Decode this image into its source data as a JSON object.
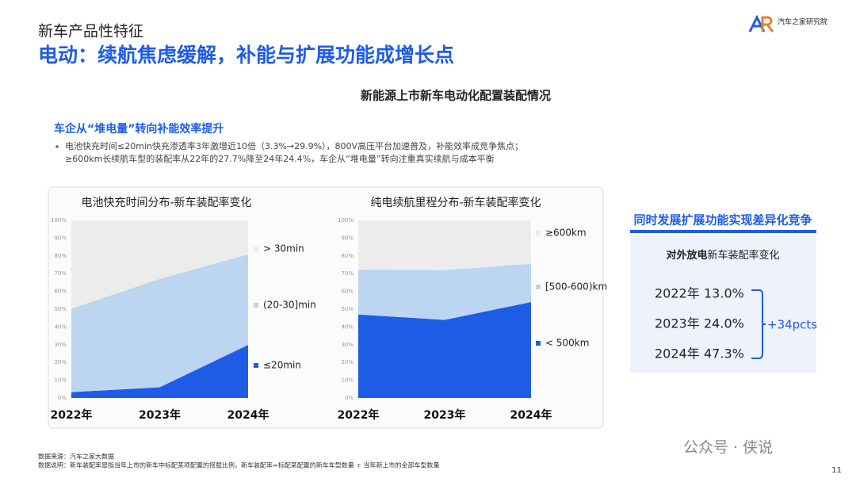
{
  "header": {
    "section": "新车产品性特征",
    "title": "电动：续航焦虑缓解，补能与扩展功能成增长点",
    "logo": "汽车之家研究院"
  },
  "subheading": "新能源上市新车电动化配置装配情况",
  "highlight": {
    "title": "车企从“堆电量”转向补能效率提升",
    "bullets": [
      "电池快充时间≤20min快充渗透率3年激增近10倍（3.3%→29.9%），800V高压平台加速普及，补能效率成竞争焦点；",
      "≥600km长续航车型的装配率从22年的27.7%降至24年24.4%，车企从“堆电量”转向注重真实续航与成本平衡"
    ]
  },
  "chart_data": [
    {
      "type": "area",
      "stacked": true,
      "title": "电池快充时间分布-新车装配率变化",
      "categories": [
        "2022年",
        "2023年",
        "2024年"
      ],
      "series": [
        {
          "name": "≤20min",
          "color": "#1f5ce6",
          "values": [
            3.3,
            6,
            29.9
          ]
        },
        {
          "name": "(20-30]min",
          "color": "#bcd5f0",
          "values": [
            47,
            61,
            51
          ]
        },
        {
          "name": "> 30min",
          "color": "#ececec",
          "values": [
            49.7,
            33,
            19.1
          ]
        }
      ],
      "ylim": [
        0,
        100
      ],
      "yticks": [
        {
          "value": 0,
          "label": "0%"
        },
        {
          "value": 10,
          "label": "10%"
        },
        {
          "value": 20,
          "label": "20%"
        },
        {
          "value": 30,
          "label": "30%"
        },
        {
          "value": 40,
          "label": "40%"
        },
        {
          "value": 50,
          "label": "50%"
        },
        {
          "value": 60,
          "label": "60%"
        },
        {
          "value": 70,
          "label": "70%"
        },
        {
          "value": 80,
          "label": "80%"
        },
        {
          "value": 90,
          "label": "90%"
        },
        {
          "value": 100,
          "label": "100%"
        }
      ]
    },
    {
      "type": "area",
      "stacked": true,
      "title": "纯电续航里程分布-新车装配率变化",
      "categories": [
        "2022年",
        "2023年",
        "2024年"
      ],
      "series": [
        {
          "name": "< 500km",
          "color": "#1f5ce6",
          "values": [
            47,
            44,
            54
          ]
        },
        {
          "name": "[500-600)km",
          "color": "#bcd5f0",
          "values": [
            25.3,
            28,
            21.6
          ]
        },
        {
          "name": "≥600km",
          "color": "#ececec",
          "values": [
            27.7,
            28,
            24.4
          ]
        }
      ],
      "ylim": [
        0,
        100
      ],
      "yticks": [
        {
          "value": 0,
          "label": "0%"
        },
        {
          "value": 10,
          "label": "10%"
        },
        {
          "value": 20,
          "label": "20%"
        },
        {
          "value": 30,
          "label": "30%"
        },
        {
          "value": 40,
          "label": "40%"
        },
        {
          "value": 50,
          "label": "50%"
        },
        {
          "value": 60,
          "label": "60%"
        },
        {
          "value": 70,
          "label": "70%"
        },
        {
          "value": 80,
          "label": "80%"
        },
        {
          "value": 90,
          "label": "90%"
        },
        {
          "value": 100,
          "label": "100%"
        }
      ]
    }
  ],
  "side_panel": {
    "title": "同时发展扩展功能实现差异化竞争",
    "subtitle_bold": "对外放电",
    "subtitle": "新车装配率变化",
    "rows": [
      {
        "year": "2022年",
        "value": "13.0%"
      },
      {
        "year": "2023年",
        "value": "24.0%"
      },
      {
        "year": "2024年",
        "value": "47.3%"
      }
    ],
    "change": "+34pcts"
  },
  "footer": {
    "source": "数据来源：汽车之家大数据",
    "note": "数据说明：新车装配率是指当年上市的新车中标配某项配置的搭载比例，新车装配率=标配某配置的新车车型数量 ÷ 当年新上市的全部车型数量",
    "page": "11",
    "watermark": "公众号 · 侠说"
  }
}
